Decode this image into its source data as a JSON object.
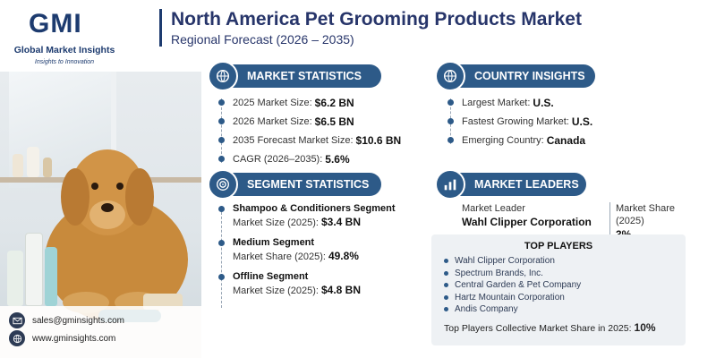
{
  "header": {
    "logo_text": "GMI",
    "logo_name": "Global Market Insights",
    "logo_tagline": "Insights to Innovation",
    "title": "North America Pet Grooming Products Market",
    "subtitle": "Regional Forecast (2026 – 2035)"
  },
  "market_statistics": {
    "heading": "MARKET STATISTICS",
    "icon": "globe-money-icon",
    "rows": [
      {
        "label": "2025 Market Size:",
        "value": "$6.2 BN"
      },
      {
        "label": "2026 Market Size:",
        "value": "$6.5 BN"
      },
      {
        "label": "2035 Forecast Market Size:",
        "value": "$10.6 BN"
      },
      {
        "label": "CAGR (2026–2035):",
        "value": "5.6%"
      }
    ]
  },
  "country_insights": {
    "heading": "COUNTRY INSIGHTS",
    "icon": "globe-icon",
    "rows": [
      {
        "label": "Largest Market:",
        "value": "U.S."
      },
      {
        "label": "Fastest Growing Market:",
        "value": "U.S."
      },
      {
        "label": "Emerging Country:",
        "value": "Canada"
      }
    ]
  },
  "segment_statistics": {
    "heading": "SEGMENT STATISTICS",
    "icon": "target-icon",
    "items": [
      {
        "name": "Shampoo & Conditioners Segment",
        "label": "Market Size (2025):",
        "value": "$3.4 BN"
      },
      {
        "name": "Medium Segment",
        "label": "Market Share (2025):",
        "value": "49.8%"
      },
      {
        "name": "Offline Segment",
        "label": "Market Size (2025):",
        "value": "$4.8 BN"
      }
    ]
  },
  "market_leaders": {
    "heading": "MARKET LEADERS",
    "icon": "bar-chart-icon",
    "leader_label": "Market Leader",
    "leader_name": "Wahl Clipper Corporation",
    "share_label": "Market Share (2025)",
    "share_value": "3%"
  },
  "top_players": {
    "heading": "TOP PLAYERS",
    "list": [
      "Wahl Clipper Corporation",
      "Spectrum Brands, Inc.",
      "Central Garden & Pet Company",
      "Hartz Mountain Corporation",
      "Andis Company"
    ],
    "collective_label": "Top Players Collective Market Share in 2025:",
    "collective_value": "10%"
  },
  "contact": {
    "email": "sales@gminsights.com",
    "website": "www.gminsights.com"
  },
  "colors": {
    "accent": "#2d5a88",
    "title": "#27356a",
    "panel": "#eef1f4"
  }
}
